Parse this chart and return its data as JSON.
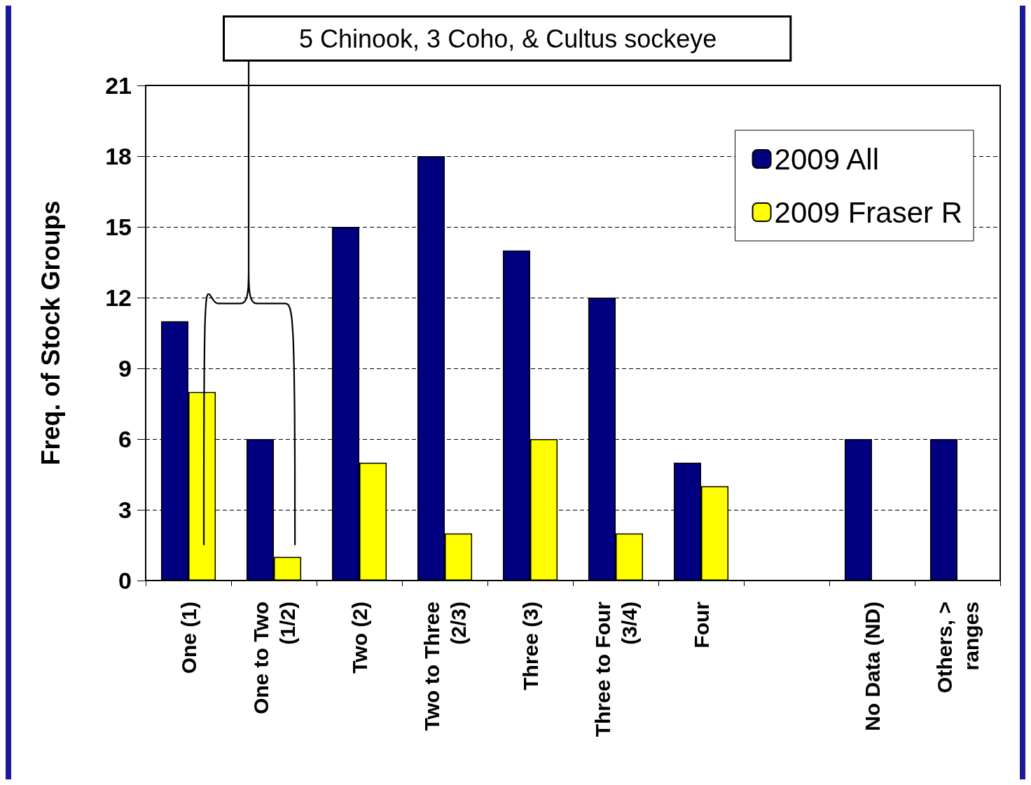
{
  "chart_data": {
    "type": "bar",
    "ylabel": "Freq. of Stock Groups",
    "categories": [
      "One (1)",
      "One to Two\n(1/2)",
      "Two (2)",
      "Two to Three\n(2/3)",
      "Three (3)",
      "Three to Four\n(3/4)",
      "Four",
      null,
      "No Data (ND)",
      "Others, >\nranges"
    ],
    "series": [
      {
        "name": "2009 All",
        "color": "#000080",
        "values": [
          11,
          6,
          15,
          18,
          14,
          12,
          5,
          null,
          6,
          6
        ]
      },
      {
        "name": "2009 Fraser R",
        "color": "#ffff00",
        "values": [
          8,
          1,
          5,
          2,
          6,
          2,
          4,
          null,
          null,
          null
        ]
      }
    ],
    "ylim": [
      0,
      21
    ],
    "yticks": [
      0,
      3,
      6,
      9,
      12,
      15,
      18,
      21
    ],
    "grid": "y",
    "legend": "top right",
    "annotations": [
      "5 Chinook, 3 Coho, & Cultus sockeye"
    ]
  }
}
